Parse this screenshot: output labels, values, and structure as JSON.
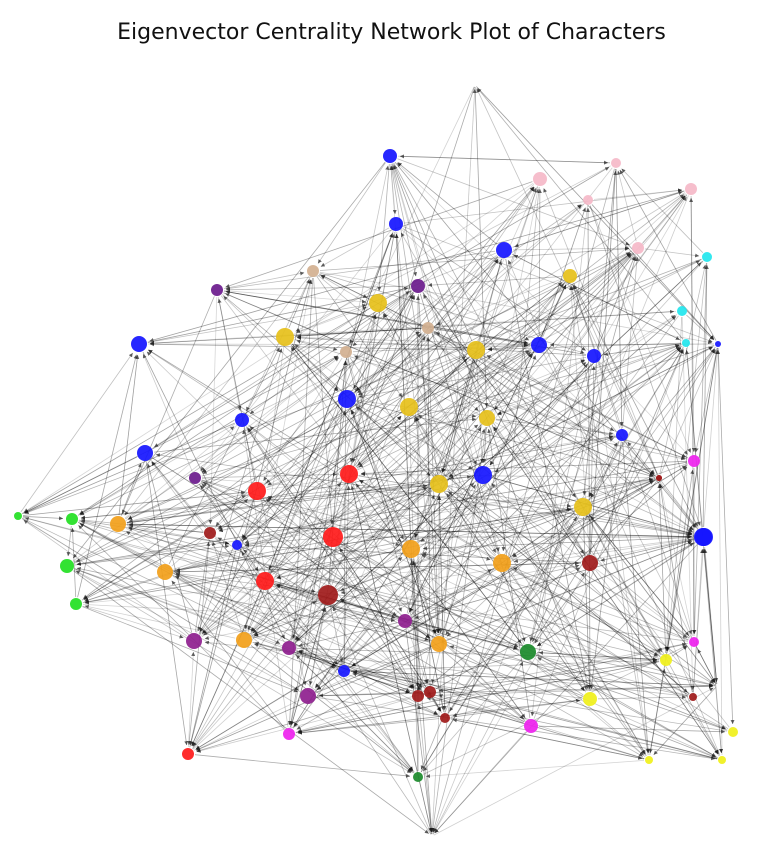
{
  "figure": {
    "title": "Eigenvector Centrality Network Plot of Characters"
  },
  "network": {
    "edge_color": "#000000",
    "colors": {
      "blue": "#1515ff",
      "red": "#ff1a1a",
      "gold": "#e6c01a",
      "orange": "#f2a01a",
      "purple": "#8e1e8e",
      "indigo": "#6a1a8c",
      "darkred": "#a01a1a",
      "green": "#1a8a2a",
      "lime": "#22e022",
      "pink": "#f5b8c8",
      "cyan": "#22e6ee",
      "magenta": "#ee22ee",
      "yellow": "#f0f01a",
      "tan": "#d2b090",
      "hidden": "#ffffff"
    },
    "nodes": [
      {
        "id": "n1",
        "c": "hidden",
        "s": 1
      },
      {
        "id": "n2",
        "c": "blue",
        "s": 7
      },
      {
        "id": "n3",
        "c": "pink",
        "s": 7
      },
      {
        "id": "n4",
        "c": "pink",
        "s": 5
      },
      {
        "id": "n5",
        "c": "pink",
        "s": 6
      },
      {
        "id": "n6",
        "c": "pink",
        "s": 5
      },
      {
        "id": "n7",
        "c": "blue",
        "s": 7
      },
      {
        "id": "n8",
        "c": "blue",
        "s": 8
      },
      {
        "id": "n9",
        "c": "pink",
        "s": 6
      },
      {
        "id": "n10",
        "c": "cyan",
        "s": 5
      },
      {
        "id": "n11",
        "c": "gold",
        "s": 7
      },
      {
        "id": "n12",
        "c": "tan",
        "s": 6
      },
      {
        "id": "n13",
        "c": "indigo",
        "s": 6
      },
      {
        "id": "n14",
        "c": "indigo",
        "s": 7
      },
      {
        "id": "n15",
        "c": "gold",
        "s": 9
      },
      {
        "id": "n16",
        "c": "cyan",
        "s": 5
      },
      {
        "id": "n17",
        "c": "tan",
        "s": 6
      },
      {
        "id": "n18",
        "c": "gold",
        "s": 9
      },
      {
        "id": "n19",
        "c": "blue",
        "s": 8
      },
      {
        "id": "n20",
        "c": "tan",
        "s": 6
      },
      {
        "id": "n21",
        "c": "gold",
        "s": 9
      },
      {
        "id": "n22",
        "c": "blue",
        "s": 8
      },
      {
        "id": "n23",
        "c": "blue",
        "s": 7
      },
      {
        "id": "n24",
        "c": "cyan",
        "s": 4
      },
      {
        "id": "n25",
        "c": "blue",
        "s": 3
      },
      {
        "id": "n26",
        "c": "blue",
        "s": 9
      },
      {
        "id": "n27",
        "c": "gold",
        "s": 9
      },
      {
        "id": "n28",
        "c": "blue",
        "s": 7
      },
      {
        "id": "n29",
        "c": "gold",
        "s": 8
      },
      {
        "id": "n30",
        "c": "blue",
        "s": 8
      },
      {
        "id": "n31",
        "c": "blue",
        "s": 6
      },
      {
        "id": "n32",
        "c": "magenta",
        "s": 6
      },
      {
        "id": "n33",
        "c": "indigo",
        "s": 6
      },
      {
        "id": "n34",
        "c": "red",
        "s": 9
      },
      {
        "id": "n35",
        "c": "red",
        "s": 9
      },
      {
        "id": "n36",
        "c": "gold",
        "s": 9
      },
      {
        "id": "n37",
        "c": "blue",
        "s": 9
      },
      {
        "id": "n38",
        "c": "darkred",
        "s": 3
      },
      {
        "id": "n39",
        "c": "gold",
        "s": 9
      },
      {
        "id": "n40",
        "c": "lime",
        "s": 4
      },
      {
        "id": "n41",
        "c": "lime",
        "s": 6
      },
      {
        "id": "n42",
        "c": "orange",
        "s": 8
      },
      {
        "id": "n43",
        "c": "darkred",
        "s": 6
      },
      {
        "id": "n44",
        "c": "blue",
        "s": 5
      },
      {
        "id": "n45",
        "c": "red",
        "s": 10
      },
      {
        "id": "n46",
        "c": "orange",
        "s": 9
      },
      {
        "id": "n47",
        "c": "blue",
        "s": 9
      },
      {
        "id": "n48",
        "c": "lime",
        "s": 7
      },
      {
        "id": "n49",
        "c": "orange",
        "s": 9
      },
      {
        "id": "n50",
        "c": "darkred",
        "s": 8
      },
      {
        "id": "n51",
        "c": "lime",
        "s": 6
      },
      {
        "id": "n52",
        "c": "orange",
        "s": 8
      },
      {
        "id": "n53",
        "c": "red",
        "s": 9
      },
      {
        "id": "n54",
        "c": "darkred",
        "s": 10
      },
      {
        "id": "n55",
        "c": "purple",
        "s": 7
      },
      {
        "id": "n56",
        "c": "orange",
        "s": 8
      },
      {
        "id": "n57",
        "c": "purple",
        "s": 8
      },
      {
        "id": "n58",
        "c": "orange",
        "s": 8
      },
      {
        "id": "n59",
        "c": "green",
        "s": 8
      },
      {
        "id": "n60",
        "c": "magenta",
        "s": 5
      },
      {
        "id": "n61",
        "c": "blue",
        "s": 6
      },
      {
        "id": "n62",
        "c": "yellow",
        "s": 6
      },
      {
        "id": "n63",
        "c": "purple",
        "s": 7
      },
      {
        "id": "n64",
        "c": "darkred",
        "s": 6
      },
      {
        "id": "n65",
        "c": "darkred",
        "s": 6
      },
      {
        "id": "n66",
        "c": "darkred",
        "s": 5
      },
      {
        "id": "n67",
        "c": "yellow",
        "s": 7
      },
      {
        "id": "n68",
        "c": "darkred",
        "s": 4
      },
      {
        "id": "n69",
        "c": "magenta",
        "s": 7
      },
      {
        "id": "n70",
        "c": "purple",
        "s": 8
      },
      {
        "id": "n71",
        "c": "red",
        "s": 6
      },
      {
        "id": "n72",
        "c": "green",
        "s": 5
      },
      {
        "id": "n73",
        "c": "yellow",
        "s": 5
      },
      {
        "id": "n74",
        "c": "yellow",
        "s": 4
      },
      {
        "id": "n75",
        "c": "yellow",
        "s": 4
      },
      {
        "id": "n76",
        "c": "hidden",
        "s": 1
      },
      {
        "id": "n77",
        "c": "hidden",
        "s": 1
      },
      {
        "id": "n78",
        "c": "magenta",
        "s": 6
      },
      {
        "id": "n79",
        "c": "blue",
        "s": 9
      },
      {
        "id": "n80",
        "c": "darkred",
        "s": 3
      }
    ],
    "edge_seed": 20240607,
    "edges_per_node": 9
  }
}
